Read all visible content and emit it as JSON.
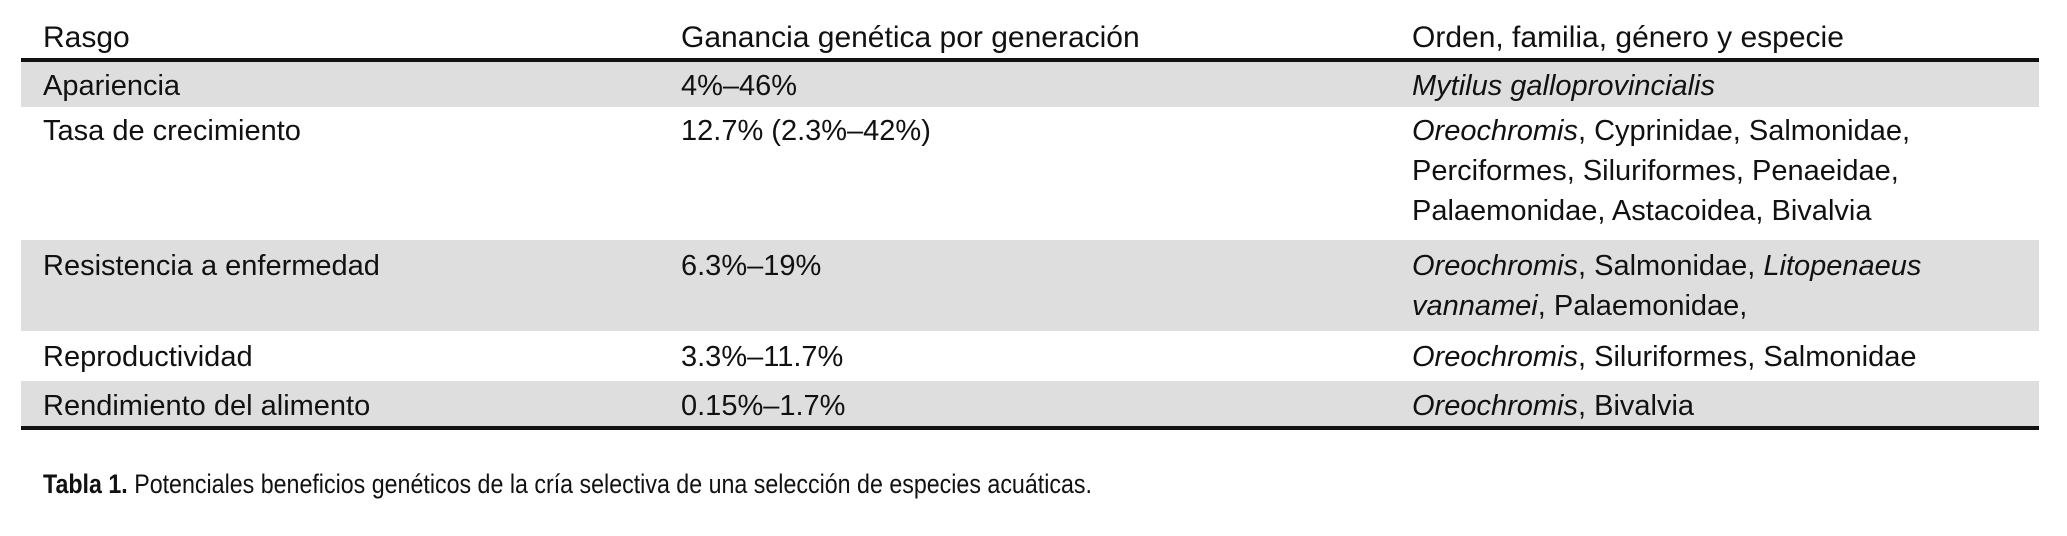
{
  "table": {
    "headers": [
      "Rasgo",
      "Ganancia genética por generación",
      "Orden, familia, género y especie"
    ],
    "rows": [
      {
        "trait": "Apariencia",
        "gain": "4%–46%",
        "species": [
          {
            "text": "Mytilus galloprovincialis",
            "italic": true
          }
        ]
      },
      {
        "trait": "Tasa de crecimiento",
        "gain": "12.7% (2.3%–42%)",
        "species": [
          {
            "text": "Oreochromis",
            "italic": true
          },
          {
            "text": ", Cyprinidae, Salmonidae, Perciformes, Siluriformes, Penaeidae, Palaemonidae, Astacoidea, Bivalvia",
            "italic": false
          }
        ]
      },
      {
        "trait": "Resistencia a enfermedad",
        "gain": "6.3%–19%",
        "species": [
          {
            "text": "Oreochromis",
            "italic": true
          },
          {
            "text": ", Salmonidae, ",
            "italic": false
          },
          {
            "text": "Litopenaeus vannamei",
            "italic": true
          },
          {
            "text": ", Palaemonidae,",
            "italic": false
          }
        ]
      },
      {
        "trait": "Reproductividad",
        "gain": "3.3%–11.7%",
        "species": [
          {
            "text": "Oreochromis",
            "italic": true
          },
          {
            "text": ", Siluriformes, Salmonidae",
            "italic": false
          }
        ]
      },
      {
        "trait": "Rendimiento del alimento",
        "gain": "0.15%–1.7%",
        "species": [
          {
            "text": "Oreochromis",
            "italic": true
          },
          {
            "text": ", Bivalvia",
            "italic": false
          }
        ]
      }
    ]
  },
  "caption": {
    "label": "Tabla 1.",
    "text": " Potenciales beneficios genéticos de la cría selectiva de una selección de especies acuáticas."
  },
  "colors": {
    "shaded_row": "#dedede",
    "rule": "#111111"
  }
}
